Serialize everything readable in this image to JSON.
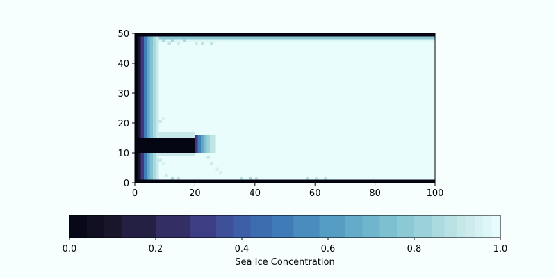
{
  "chart_data": {
    "type": "heatmap",
    "title": "",
    "xlabel": "",
    "ylabel": "",
    "xlim": [
      0,
      100
    ],
    "ylim": [
      0,
      50
    ],
    "x_ticks": [
      0,
      20,
      40,
      60,
      80,
      100
    ],
    "y_ticks": [
      0,
      10,
      20,
      30,
      40,
      50
    ],
    "grid": false,
    "value_range": [
      0,
      1
    ],
    "open_water_value": 1.0,
    "regions": [
      {
        "x": [
          0,
          100
        ],
        "y": [
          0,
          1
        ],
        "value": 0.0
      },
      {
        "x": [
          0,
          100
        ],
        "y": [
          49,
          50
        ],
        "value": 0.0
      },
      {
        "x": [
          0,
          1
        ],
        "y": [
          0,
          50
        ],
        "value": 0.0
      },
      {
        "x": [
          0,
          20
        ],
        "y": [
          10,
          15
        ],
        "value": 0.0
      },
      {
        "x": [
          1,
          2
        ],
        "y": [
          1,
          49
        ],
        "value": 0.1
      },
      {
        "x": [
          2,
          3
        ],
        "y": [
          1,
          49
        ],
        "value": 0.3
      },
      {
        "x": [
          3,
          4
        ],
        "y": [
          1,
          49
        ],
        "value": 0.5
      },
      {
        "x": [
          4,
          5
        ],
        "y": [
          1,
          49
        ],
        "value": 0.65
      },
      {
        "x": [
          5,
          6
        ],
        "y": [
          1,
          49
        ],
        "value": 0.75
      },
      {
        "x": [
          6,
          7
        ],
        "y": [
          1,
          49
        ],
        "value": 0.85
      },
      {
        "x": [
          7,
          8
        ],
        "y": [
          1,
          49
        ],
        "value": 0.92
      },
      {
        "x": [
          20,
          21
        ],
        "y": [
          10,
          16
        ],
        "value": 0.3
      },
      {
        "x": [
          21,
          22
        ],
        "y": [
          10,
          16
        ],
        "value": 0.5
      },
      {
        "x": [
          22,
          23
        ],
        "y": [
          10,
          16
        ],
        "value": 0.65
      },
      {
        "x": [
          23,
          24
        ],
        "y": [
          10,
          16
        ],
        "value": 0.75
      },
      {
        "x": [
          24,
          25
        ],
        "y": [
          10,
          16
        ],
        "value": 0.82
      },
      {
        "x": [
          25,
          27
        ],
        "y": [
          10,
          16
        ],
        "value": 0.9
      },
      {
        "x": [
          8,
          20
        ],
        "y": [
          15,
          17
        ],
        "value": 0.92
      },
      {
        "x": [
          8,
          20
        ],
        "y": [
          9,
          10
        ],
        "value": 0.92
      },
      {
        "x": [
          1,
          100
        ],
        "y": [
          48,
          49
        ],
        "value": 0.78
      },
      {
        "x": [
          8,
          100
        ],
        "y": [
          47,
          48
        ],
        "value": 0.97
      }
    ],
    "scattered_cells": [
      {
        "x": 9,
        "y": 47,
        "value": 0.85
      },
      {
        "x": 11,
        "y": 46,
        "value": 0.9
      },
      {
        "x": 12,
        "y": 47,
        "value": 0.85
      },
      {
        "x": 14,
        "y": 46,
        "value": 0.93
      },
      {
        "x": 16,
        "y": 47,
        "value": 0.85
      },
      {
        "x": 20,
        "y": 46,
        "value": 0.92
      },
      {
        "x": 22,
        "y": 46,
        "value": 0.9
      },
      {
        "x": 25,
        "y": 46,
        "value": 0.9
      },
      {
        "x": 8,
        "y": 20,
        "value": 0.92
      },
      {
        "x": 9,
        "y": 21,
        "value": 0.95
      },
      {
        "x": 8,
        "y": 7,
        "value": 0.92
      },
      {
        "x": 9,
        "y": 6,
        "value": 0.95
      },
      {
        "x": 10,
        "y": 2,
        "value": 0.92
      },
      {
        "x": 12,
        "y": 1,
        "value": 0.85
      },
      {
        "x": 14,
        "y": 1,
        "value": 0.9
      },
      {
        "x": 24,
        "y": 8,
        "value": 0.92
      },
      {
        "x": 25,
        "y": 6,
        "value": 0.93
      },
      {
        "x": 27,
        "y": 4,
        "value": 0.95
      },
      {
        "x": 28,
        "y": 3,
        "value": 0.95
      },
      {
        "x": 35,
        "y": 1,
        "value": 0.88
      },
      {
        "x": 38,
        "y": 1,
        "value": 0.85
      },
      {
        "x": 40,
        "y": 1,
        "value": 0.9
      },
      {
        "x": 57,
        "y": 1,
        "value": 0.88
      },
      {
        "x": 60,
        "y": 1,
        "value": 0.9
      },
      {
        "x": 63,
        "y": 1,
        "value": 0.9
      }
    ],
    "colorbar": {
      "label": "Sea Ice Concentration",
      "ticks": [
        "0.0",
        "0.2",
        "0.4",
        "0.6",
        "0.8",
        "1.0"
      ],
      "range": [
        0,
        1
      ],
      "orientation": "horizontal",
      "placement": "bottom",
      "levels": [
        0,
        0.04,
        0.08,
        0.12,
        0.2,
        0.28,
        0.34,
        0.38,
        0.42,
        0.47,
        0.52,
        0.58,
        0.64,
        0.68,
        0.72,
        0.76,
        0.8,
        0.84,
        0.87,
        0.9,
        0.92,
        0.94,
        0.96,
        0.98,
        1.0
      ]
    },
    "colormap": "ice"
  }
}
